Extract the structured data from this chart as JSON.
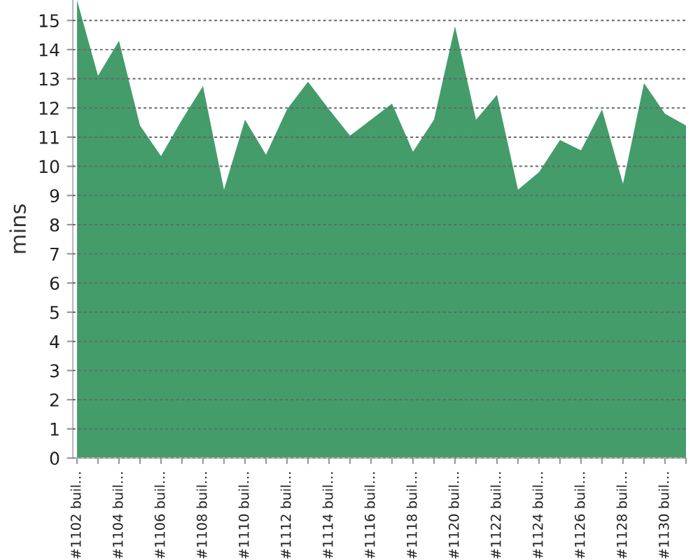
{
  "chart_data": {
    "type": "area",
    "ylabel": "mins",
    "categories": [
      "#1102 buil…",
      null,
      "#1104 buil…",
      null,
      "#1106 buil…",
      null,
      "#1108 buil…",
      null,
      "#1110 buil…",
      null,
      "#1112 buil…",
      null,
      "#1114 buil…",
      null,
      "#1116 buil…",
      null,
      "#1118 buil…",
      null,
      "#1120 buil…",
      null,
      "#1122 buil…",
      null,
      "#1124 buil…",
      null,
      "#1126 buil…",
      null,
      "#1128 buil…",
      null,
      "#1130 buil…",
      null
    ],
    "series": [
      {
        "color": "#449c6b",
        "values": [
          15.7,
          13.1,
          14.3,
          11.4,
          10.35,
          11.6,
          12.75,
          9.2,
          11.6,
          10.4,
          11.95,
          12.9,
          11.95,
          11.05,
          11.6,
          12.15,
          10.5,
          11.6,
          14.8,
          11.6,
          12.45,
          9.2,
          9.8,
          10.9,
          10.55,
          11.95,
          9.4,
          12.85,
          11.8,
          11.4
        ]
      }
    ],
    "ylim": [
      0,
      15.7
    ],
    "yticks": [
      0,
      1,
      2,
      3,
      4,
      5,
      6,
      7,
      8,
      9,
      10,
      11,
      12,
      13,
      14,
      15
    ],
    "grid": "y"
  }
}
